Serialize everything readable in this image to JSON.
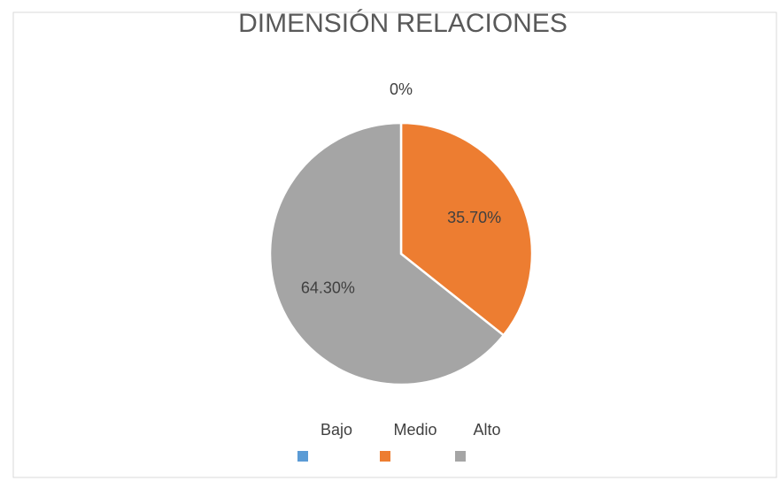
{
  "chart_data": {
    "type": "pie",
    "title": "DIMENSIÓN RELACIONES",
    "categories": [
      "Bajo",
      "Medio",
      "Alto"
    ],
    "values": [
      0,
      35.7,
      64.3
    ],
    "value_labels": [
      "0%",
      "35.70%",
      "64.30%"
    ],
    "colors": [
      "#5b9bd5",
      "#ed7d31",
      "#a5a5a5"
    ],
    "legend": "bottom"
  }
}
